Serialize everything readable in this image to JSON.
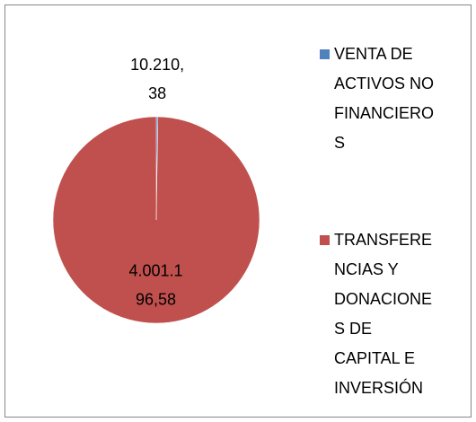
{
  "chart_data": {
    "type": "pie",
    "categories": [
      "VENTA DE ACTIVOS NO FINANCIEROS",
      "TRANSFERENCIAS Y DONACIONES DE CAPITAL E INVERSIÓN"
    ],
    "values": [
      10210.38,
      4001196.58
    ],
    "value_labels": [
      "10.210,38",
      "4.001.196,58"
    ],
    "colors": [
      "#4f81bd",
      "#c0504d"
    ],
    "legend": "right"
  }
}
